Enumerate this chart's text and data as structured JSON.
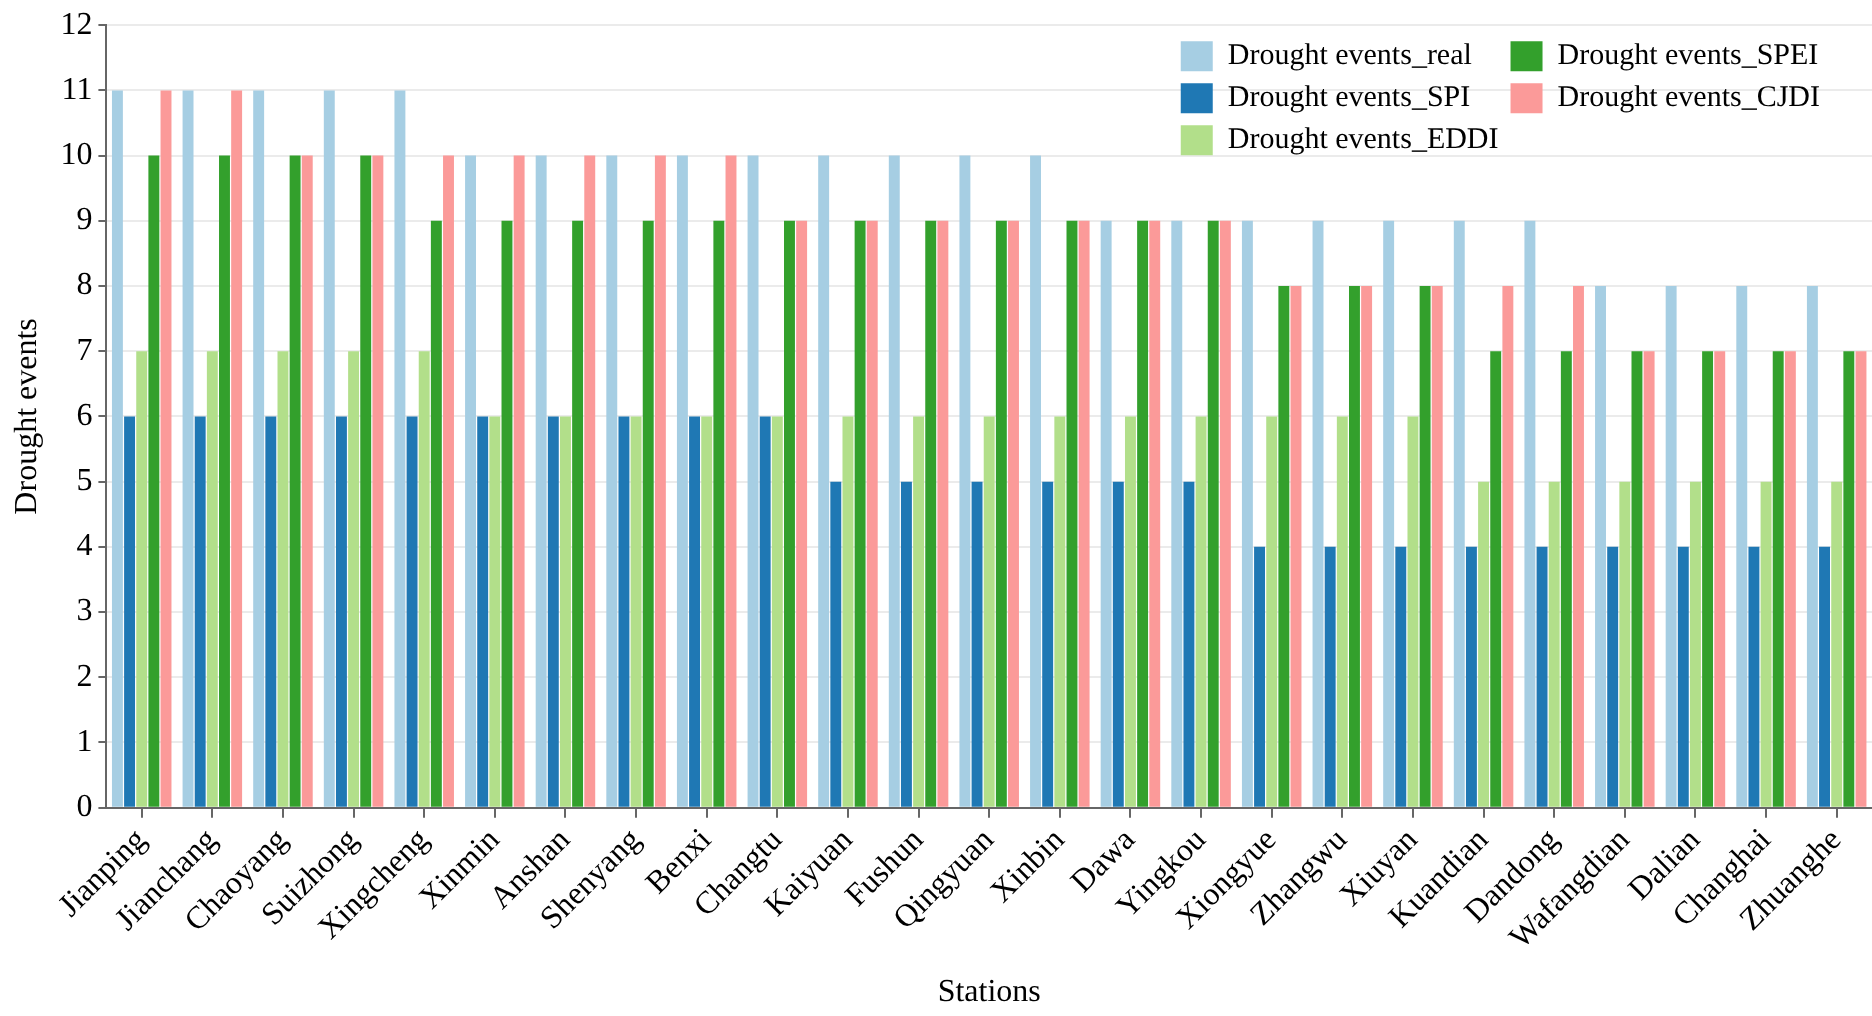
{
  "chart_data": {
    "type": "bar",
    "xlabel": "Stations",
    "ylabel": "Drought events",
    "categories": [
      "Jianping",
      "Jianchang",
      "Chaoyang",
      "Suizhong",
      "Xingcheng",
      "Xinmin",
      "Anshan",
      "Shenyang",
      "Benxi",
      "Changtu",
      "Kaiyuan",
      "Fushun",
      "Qingyuan",
      "Xinbin",
      "Dawa",
      "Yingkou",
      "Xiongyue",
      "Zhangwu",
      "Xiuyan",
      "Kuandian",
      "Dandong",
      "Wafangdian",
      "Dalian",
      "Changhai",
      "Zhuanghe"
    ],
    "series": [
      {
        "name": "Drought events_real",
        "color": "#a6cee3",
        "values": [
          11,
          11,
          11,
          11,
          11,
          10,
          10,
          10,
          10,
          10,
          10,
          10,
          10,
          10,
          9,
          9,
          9,
          9,
          9,
          9,
          9,
          8,
          8,
          8,
          8
        ]
      },
      {
        "name": "Drought events_SPI",
        "color": "#1f78b4",
        "values": [
          6,
          6,
          6,
          6,
          6,
          6,
          6,
          6,
          6,
          6,
          5,
          5,
          5,
          5,
          5,
          5,
          4,
          4,
          4,
          4,
          4,
          4,
          4,
          4,
          4
        ]
      },
      {
        "name": "Drought events_EDDI",
        "color": "#b2df8a",
        "values": [
          7,
          7,
          7,
          7,
          7,
          6,
          6,
          6,
          6,
          6,
          6,
          6,
          6,
          6,
          6,
          6,
          6,
          6,
          6,
          5,
          5,
          5,
          5,
          5,
          5
        ]
      },
      {
        "name": "Drought events_SPEI",
        "color": "#33a02c",
        "values": [
          10,
          10,
          10,
          10,
          9,
          9,
          9,
          9,
          9,
          9,
          9,
          9,
          9,
          9,
          9,
          9,
          8,
          8,
          8,
          7,
          7,
          7,
          7,
          7,
          7
        ]
      },
      {
        "name": "Drought events_CJDI",
        "color": "#fb9a99",
        "values": [
          11,
          11,
          10,
          10,
          10,
          10,
          10,
          10,
          10,
          9,
          9,
          9,
          9,
          9,
          9,
          9,
          8,
          8,
          8,
          8,
          8,
          7,
          7,
          7,
          7
        ]
      }
    ],
    "ylim": [
      0,
      12
    ],
    "yticks": [
      0,
      1,
      2,
      3,
      4,
      5,
      6,
      7,
      8,
      9,
      10,
      11,
      12
    ],
    "grid": "y",
    "legend": "top right"
  }
}
